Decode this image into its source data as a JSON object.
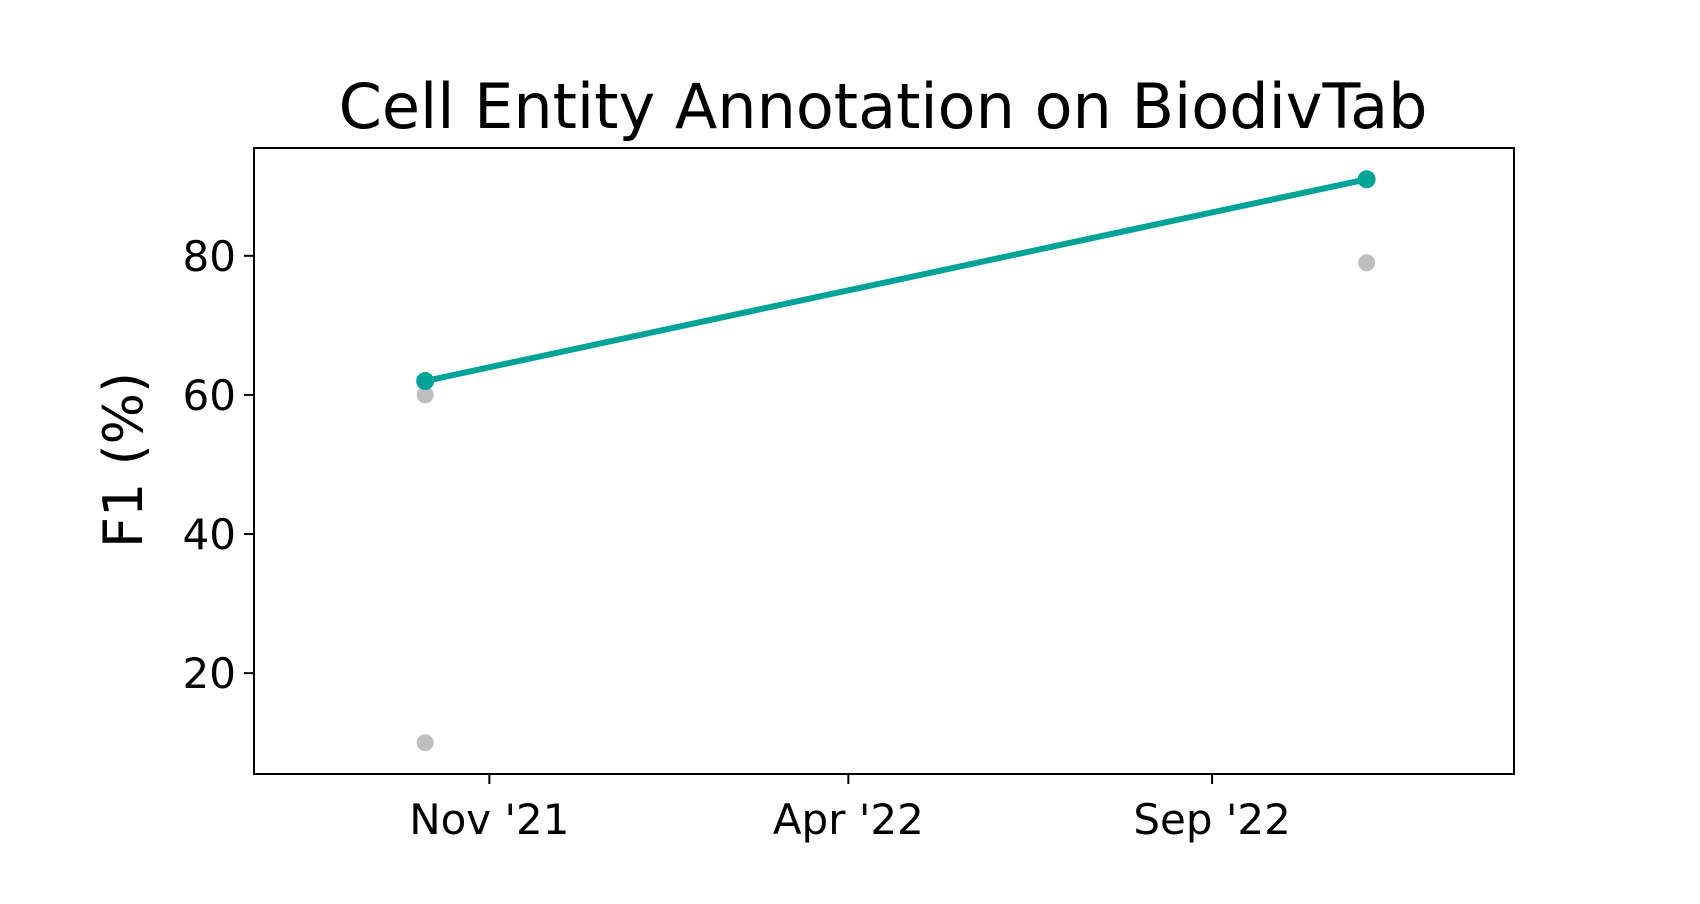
{
  "chart_data": {
    "type": "line",
    "title": "Cell Entity Annotation on BiodivTab",
    "xlabel": "",
    "ylabel": "F1 (%)",
    "x_tick_labels": [
      "Nov '21",
      "Apr '22",
      "Sep '22"
    ],
    "x_tick_dates": [
      "2021-11-01",
      "2022-04-01",
      "2022-09-01"
    ],
    "y_ticks": [
      20,
      40,
      60,
      80
    ],
    "xlim": [
      "2021-07-25",
      "2023-01-06"
    ],
    "ylim": [
      5.5,
      95.5
    ],
    "grid": false,
    "legend": "none",
    "series": [
      {
        "color": "#00A497",
        "style": "line-with-markers",
        "points": [
          {
            "x": "2021-10-05",
            "y": 62
          },
          {
            "x": "2022-11-05",
            "y": 91
          }
        ]
      },
      {
        "color": "#BEBEBE",
        "style": "markers-only",
        "points": [
          {
            "x": "2021-10-05",
            "y": 60
          },
          {
            "x": "2021-10-05",
            "y": 10
          },
          {
            "x": "2022-11-05",
            "y": 79
          }
        ]
      }
    ]
  }
}
